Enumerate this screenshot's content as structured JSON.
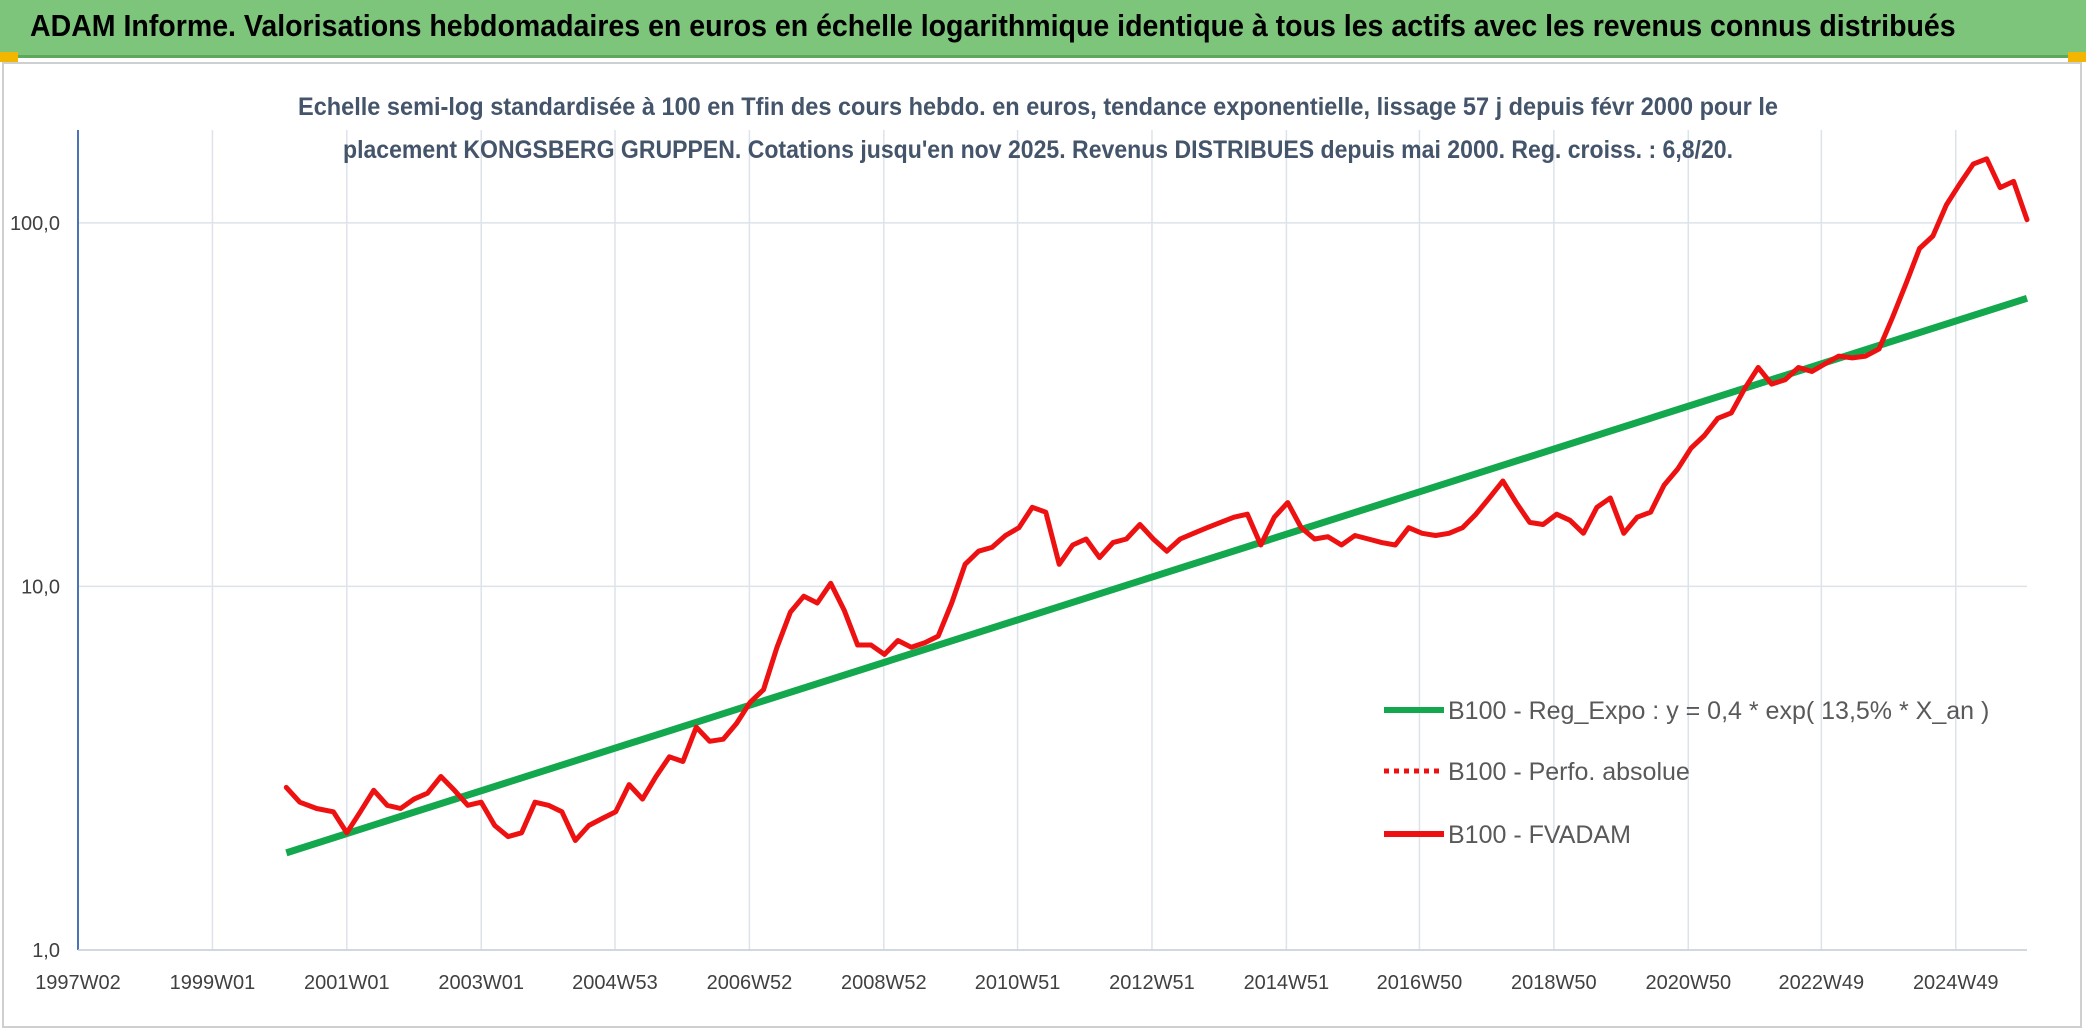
{
  "header": {
    "title": "ADAM Informe. Valorisations hebdomadaires en euros en échelle logarithmique identique à tous les actifs avec les revenus connus distribués"
  },
  "colors": {
    "header_bg": "#7dc57a",
    "trend": "#13a84e",
    "series": "#ee1111",
    "title_text": "#44546a",
    "accent": "#f2b500"
  },
  "chart_data": {
    "type": "line",
    "title_lines": [
      "Echelle semi-log standardisée à 100 en Tfin des cours hebdo. en euros, tendance exponentielle, lissage 57 j depuis févr 2000 pour le",
      "placement KONGSBERG GRUPPEN. Cotations jusqu'en nov 2025. Revenus DISTRIBUES depuis mai 2000. Reg. croiss. : 6,8/20."
    ],
    "y_scale": "log",
    "ylim": [
      1,
      180
    ],
    "y_ticks": [
      {
        "value": 1,
        "label": "1,0"
      },
      {
        "value": 10,
        "label": "10,0"
      },
      {
        "value": 100,
        "label": "100,0"
      }
    ],
    "xlim": [
      1997.0,
      2026.0
    ],
    "x_ticks": [
      {
        "x": 1997.0,
        "label": "1997W02"
      },
      {
        "x": 1999.0,
        "label": "1999W01"
      },
      {
        "x": 2001.0,
        "label": "2001W01"
      },
      {
        "x": 2003.0,
        "label": "2003W01"
      },
      {
        "x": 2004.99,
        "label": "2004W53"
      },
      {
        "x": 2006.99,
        "label": "2006W52"
      },
      {
        "x": 2008.99,
        "label": "2008W52"
      },
      {
        "x": 2010.98,
        "label": "2010W51"
      },
      {
        "x": 2012.98,
        "label": "2012W51"
      },
      {
        "x": 2014.98,
        "label": "2014W51"
      },
      {
        "x": 2016.96,
        "label": "2016W50"
      },
      {
        "x": 2018.96,
        "label": "2018W50"
      },
      {
        "x": 2020.96,
        "label": "2020W50"
      },
      {
        "x": 2022.94,
        "label": "2022W49"
      },
      {
        "x": 2024.94,
        "label": "2024W49"
      }
    ],
    "legend": {
      "position": "right",
      "entries": [
        {
          "label": "B100 - Reg_Expo : y = 0,4 *  exp( 13,5% *  X_an )",
          "style": "solid-green"
        },
        {
          "label": "B100 - Perfo. absolue",
          "style": "dotted-red"
        },
        {
          "label": "B100 - FVADAM",
          "style": "solid-red"
        }
      ]
    },
    "series": [
      {
        "name": "B100 - Reg_Expo : y = 0,4 *  exp( 13,5% *  X_an )",
        "color": "#13a84e",
        "x": [
          2000.1,
          2026.0
        ],
        "y": [
          1.85,
          62
        ]
      },
      {
        "name": "B100 - FVADAM",
        "color": "#ee1111",
        "x": [
          2000.1,
          2000.3,
          2000.55,
          2000.8,
          2001.0,
          2001.2,
          2001.4,
          2001.6,
          2001.8,
          2002.0,
          2002.2,
          2002.4,
          2002.6,
          2002.8,
          2003.0,
          2003.2,
          2003.4,
          2003.6,
          2003.8,
          2004.0,
          2004.2,
          2004.4,
          2004.6,
          2004.8,
          2005.0,
          2005.2,
          2005.4,
          2005.6,
          2005.8,
          2006.0,
          2006.2,
          2006.4,
          2006.6,
          2006.8,
          2007.0,
          2007.2,
          2007.4,
          2007.6,
          2007.8,
          2008.0,
          2008.2,
          2008.4,
          2008.6,
          2008.8,
          2009.0,
          2009.2,
          2009.4,
          2009.6,
          2009.8,
          2010.0,
          2010.2,
          2010.4,
          2010.6,
          2010.8,
          2011.0,
          2011.2,
          2011.4,
          2011.6,
          2011.8,
          2012.0,
          2012.2,
          2012.4,
          2012.6,
          2012.8,
          2013.0,
          2013.2,
          2013.4,
          2013.6,
          2013.8,
          2014.0,
          2014.2,
          2014.4,
          2014.6,
          2014.8,
          2015.0,
          2015.2,
          2015.4,
          2015.6,
          2015.8,
          2016.0,
          2016.2,
          2016.4,
          2016.6,
          2016.8,
          2017.0,
          2017.2,
          2017.4,
          2017.6,
          2017.8,
          2018.0,
          2018.2,
          2018.4,
          2018.6,
          2018.8,
          2019.0,
          2019.2,
          2019.4,
          2019.6,
          2019.8,
          2020.0,
          2020.2,
          2020.4,
          2020.6,
          2020.8,
          2021.0,
          2021.2,
          2021.4,
          2021.6,
          2021.8,
          2022.0,
          2022.2,
          2022.4,
          2022.6,
          2022.8,
          2023.0,
          2023.2,
          2023.4,
          2023.6,
          2023.8,
          2024.0,
          2024.2,
          2024.4,
          2024.6,
          2024.8,
          2025.0,
          2025.2,
          2025.4,
          2025.6,
          2025.8,
          2026.0
        ],
        "y": [
          2.8,
          2.55,
          2.45,
          2.4,
          2.1,
          2.4,
          2.75,
          2.5,
          2.45,
          2.6,
          2.7,
          3.0,
          2.75,
          2.5,
          2.55,
          2.2,
          2.05,
          2.1,
          2.55,
          2.5,
          2.4,
          2.0,
          2.2,
          2.3,
          2.4,
          2.85,
          2.6,
          3.0,
          3.4,
          3.3,
          4.1,
          3.75,
          3.8,
          4.2,
          4.8,
          5.2,
          6.8,
          8.5,
          9.4,
          9.0,
          10.2,
          8.6,
          6.9,
          6.9,
          6.5,
          7.1,
          6.8,
          7.0,
          7.3,
          9.0,
          11.5,
          12.5,
          12.8,
          13.8,
          14.5,
          16.5,
          16.0,
          11.5,
          13.0,
          13.5,
          12.0,
          13.2,
          13.5,
          14.8,
          13.5,
          12.5,
          13.5,
          14.0,
          14.5,
          15.0,
          15.5,
          15.8,
          13.0,
          15.5,
          17.0,
          14.5,
          13.5,
          13.7,
          13.0,
          13.8,
          13.5,
          13.2,
          13.0,
          14.5,
          14.0,
          13.8,
          14.0,
          14.5,
          15.8,
          17.5,
          19.5,
          17.0,
          15.0,
          14.8,
          15.8,
          15.2,
          14.0,
          16.5,
          17.5,
          14.0,
          15.5,
          16.0,
          19.0,
          21.0,
          24.0,
          26.0,
          29.0,
          30.0,
          35.0,
          40.0,
          36.0,
          37.0,
          40.0,
          39.0,
          41.0,
          43.0,
          42.5,
          43.0,
          45.0,
          55.0,
          68.0,
          85.0,
          92.0,
          112.0,
          128.0,
          145.0,
          150.0,
          125.0,
          130.0,
          102.0
        ]
      }
    ]
  }
}
